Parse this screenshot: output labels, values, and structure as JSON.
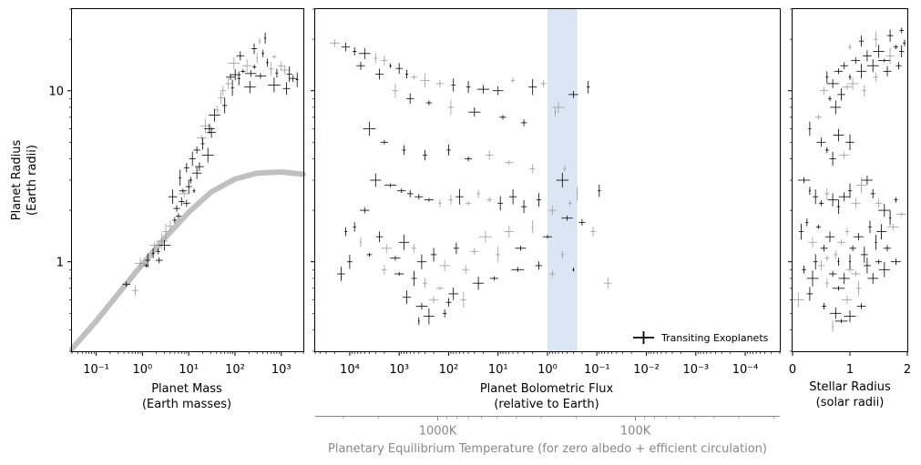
{
  "chart_data": [
    {
      "type": "scatter",
      "panel": "mass-radius",
      "xlabel": "Planet Mass",
      "xlabel_units": "(Earth masses)",
      "ylabel": "Planet Radius",
      "ylabel_units": "(Earth radii)",
      "x_scale": "log",
      "y_scale": "log",
      "xlim": [
        0.03,
        3000
      ],
      "ylim": [
        0.3,
        30
      ],
      "x_ticks": [
        {
          "value": 0.1,
          "label": "10⁻¹"
        },
        {
          "value": 1,
          "label": "10⁰"
        },
        {
          "value": 10,
          "label": "10¹"
        },
        {
          "value": 100,
          "label": "10²"
        },
        {
          "value": 1000,
          "label": "10³"
        }
      ],
      "y_ticks": [
        {
          "value": 1,
          "label": "1"
        },
        {
          "value": 10,
          "label": "10"
        }
      ],
      "reference_curve": {
        "color": "#c0c0c0",
        "x": [
          0.03,
          0.1,
          0.3,
          1,
          3,
          10,
          30,
          100,
          300,
          1000,
          3000
        ],
        "y": [
          0.31,
          0.45,
          0.65,
          0.97,
          1.37,
          1.95,
          2.55,
          3.05,
          3.3,
          3.35,
          3.25
        ]
      },
      "points": [
        [
          0.45,
          0.74
        ],
        [
          0.7,
          0.68
        ],
        [
          0.9,
          0.98
        ],
        [
          1.3,
          1.02
        ],
        [
          1.7,
          1.12
        ],
        [
          1.8,
          1.25
        ],
        [
          2.3,
          1.02
        ],
        [
          2.6,
          1.32
        ],
        [
          3.2,
          1.5
        ],
        [
          4.0,
          1.62
        ],
        [
          5.0,
          1.75
        ],
        [
          5.5,
          2.05
        ],
        [
          6.0,
          1.85
        ],
        [
          7.0,
          2.25
        ],
        [
          8.0,
          2.5
        ],
        [
          9.0,
          2.2
        ],
        [
          10,
          2.75
        ],
        [
          11,
          3.0
        ],
        [
          13,
          2.6
        ],
        [
          15,
          3.3
        ],
        [
          9,
          3.55
        ],
        [
          12,
          4.0
        ],
        [
          15,
          4.5
        ],
        [
          19,
          5.3
        ],
        [
          23,
          6.2
        ],
        [
          26,
          4.2
        ],
        [
          31,
          5.7
        ],
        [
          41,
          7.7
        ],
        [
          50,
          9.1
        ],
        [
          60,
          8.2
        ],
        [
          72,
          11.0
        ],
        [
          88,
          10.4
        ],
        [
          101,
          12.4
        ],
        [
          121,
          11.8
        ],
        [
          149,
          13.0
        ],
        [
          181,
          14.0
        ],
        [
          219,
          12.6
        ],
        [
          262,
          13.8
        ],
        [
          300,
          15.5
        ],
        [
          355,
          12.2
        ],
        [
          402,
          16.5
        ],
        [
          498,
          14.6
        ],
        [
          603,
          13.4
        ],
        [
          704,
          15.8
        ],
        [
          801,
          12.7
        ],
        [
          998,
          14.0
        ],
        [
          1197,
          13.2
        ],
        [
          1500,
          12.5
        ],
        [
          1800,
          11.8
        ],
        [
          2200,
          11.6
        ],
        [
          340,
          19.5
        ],
        [
          450,
          20.3
        ],
        [
          260,
          17.6
        ],
        [
          130,
          16.0
        ],
        [
          95,
          14.5
        ],
        [
          210,
          10.5
        ],
        [
          700,
          10.8
        ],
        [
          1300,
          10.3
        ],
        [
          3,
          1.25
        ],
        [
          4.5,
          2.4
        ],
        [
          6.5,
          3.1
        ],
        [
          17,
          3.6
        ],
        [
          28,
          6.0
        ],
        [
          36,
          7.2
        ],
        [
          55,
          10.0
        ],
        [
          80,
          12.0
        ],
        [
          2.2,
          1.15
        ],
        [
          1.2,
          0.95
        ],
        [
          7.5,
          2.6
        ],
        [
          20,
          4.9
        ]
      ]
    },
    {
      "type": "scatter",
      "panel": "flux-radius",
      "xlabel": "Planet Bolometric Flux",
      "xlabel_units": "(relative to Earth)",
      "x_scale": "log",
      "x_reversed": true,
      "y_scale": "log",
      "xlim": [
        50000,
        2e-05
      ],
      "ylim": [
        0.3,
        30
      ],
      "x_ticks": [
        {
          "value": 10000,
          "label": "10⁴"
        },
        {
          "value": 1000,
          "label": "10³"
        },
        {
          "value": 100,
          "label": "10²"
        },
        {
          "value": 10,
          "label": "10¹"
        },
        {
          "value": 1,
          "label": "10⁰"
        },
        {
          "value": 0.1,
          "label": "10⁻¹"
        },
        {
          "value": 0.01,
          "label": "10⁻²"
        },
        {
          "value": 0.001,
          "label": "10⁻³"
        },
        {
          "value": 0.0001,
          "label": "10⁻⁴"
        }
      ],
      "habitable_zone": {
        "from": 1.0,
        "to": 0.25,
        "color": "#dbe6f5"
      },
      "secondary_axis": {
        "label": "Planetary Equilibrium Temperature (for zero albedo + efficient circulation)",
        "ticks": [
          {
            "value_K": 1000,
            "label": "1000K"
          },
          {
            "value_K": 100,
            "label": "100K"
          }
        ],
        "color": "#888888"
      },
      "legend": {
        "entries": [
          "Transiting Exoplanets"
        ],
        "placement": "lower-right"
      },
      "points": [
        [
          20000,
          19
        ],
        [
          12000,
          18
        ],
        [
          8000,
          17
        ],
        [
          5000,
          16.5
        ],
        [
          3000,
          15.5
        ],
        [
          2000,
          15
        ],
        [
          1500,
          14
        ],
        [
          1000,
          13.5
        ],
        [
          700,
          12.5
        ],
        [
          500,
          12
        ],
        [
          300,
          11.5
        ],
        [
          150,
          11
        ],
        [
          80,
          10.8
        ],
        [
          40,
          10.5
        ],
        [
          20,
          10.2
        ],
        [
          10,
          10
        ],
        [
          5,
          11.5
        ],
        [
          2,
          10.5
        ],
        [
          1.2,
          11
        ],
        [
          0.6,
          8
        ],
        [
          0.3,
          9.5
        ],
        [
          0.15,
          10.5
        ],
        [
          6000,
          14
        ],
        [
          2500,
          12.5
        ],
        [
          1200,
          10
        ],
        [
          600,
          9
        ],
        [
          250,
          8.5
        ],
        [
          90,
          8
        ],
        [
          30,
          7.5
        ],
        [
          8,
          7
        ],
        [
          3,
          6.5
        ],
        [
          0.7,
          7.5
        ],
        [
          4000,
          6
        ],
        [
          2000,
          5
        ],
        [
          800,
          4.5
        ],
        [
          300,
          4.2
        ],
        [
          100,
          4.5
        ],
        [
          40,
          4
        ],
        [
          15,
          4.2
        ],
        [
          6,
          3.8
        ],
        [
          2,
          3.5
        ],
        [
          0.5,
          3
        ],
        [
          0.25,
          2.5
        ],
        [
          3000,
          3
        ],
        [
          1500,
          2.8
        ],
        [
          900,
          2.6
        ],
        [
          600,
          2.5
        ],
        [
          400,
          2.4
        ],
        [
          250,
          2.3
        ],
        [
          150,
          2.2
        ],
        [
          90,
          2.3
        ],
        [
          60,
          2.4
        ],
        [
          40,
          2.2
        ],
        [
          25,
          2.5
        ],
        [
          15,
          2.3
        ],
        [
          9,
          2.2
        ],
        [
          5,
          2.4
        ],
        [
          3,
          2.1
        ],
        [
          1.5,
          2.3
        ],
        [
          0.8,
          2
        ],
        [
          0.4,
          1.8
        ],
        [
          0.2,
          1.7
        ],
        [
          5000,
          2
        ],
        [
          8000,
          1.6
        ],
        [
          12000,
          1.5
        ],
        [
          6000,
          1.3
        ],
        [
          4000,
          1.1
        ],
        [
          2500,
          1.4
        ],
        [
          1800,
          1.2
        ],
        [
          1200,
          1.05
        ],
        [
          800,
          1.3
        ],
        [
          500,
          1.2
        ],
        [
          350,
          1
        ],
        [
          200,
          1.1
        ],
        [
          120,
          0.95
        ],
        [
          70,
          1.2
        ],
        [
          45,
          0.9
        ],
        [
          30,
          1.15
        ],
        [
          18,
          1.4
        ],
        [
          10,
          1.1
        ],
        [
          6,
          1.5
        ],
        [
          3.5,
          1.2
        ],
        [
          2,
          1.6
        ],
        [
          1,
          1.4
        ],
        [
          0.5,
          1.1
        ],
        [
          0.3,
          0.9
        ],
        [
          0.06,
          0.75
        ],
        [
          300,
          0.75
        ],
        [
          150,
          0.7
        ],
        [
          80,
          0.65
        ],
        [
          500,
          0.8
        ],
        [
          1000,
          0.85
        ],
        [
          2000,
          0.9
        ],
        [
          700,
          0.62
        ],
        [
          350,
          0.55
        ],
        [
          200,
          0.6
        ],
        [
          100,
          0.58
        ],
        [
          50,
          0.6
        ],
        [
          400,
          0.45
        ],
        [
          250,
          0.48
        ],
        [
          120,
          0.5
        ],
        [
          15000,
          0.85
        ],
        [
          10000,
          1.0
        ],
        [
          25,
          0.75
        ],
        [
          12,
          0.8
        ],
        [
          4,
          0.9
        ],
        [
          1.5,
          0.95
        ],
        [
          0.8,
          0.85
        ],
        [
          0.35,
          2.2
        ],
        [
          0.12,
          1.5
        ],
        [
          0.09,
          2.6
        ],
        [
          0.45,
          3.5
        ]
      ]
    },
    {
      "type": "scatter",
      "panel": "stellar-radius",
      "xlabel": "Stellar Radius",
      "xlabel_units": "(solar radii)",
      "x_scale": "linear",
      "y_scale": "log",
      "xlim": [
        0,
        2
      ],
      "ylim": [
        0.3,
        30
      ],
      "x_ticks": [
        {
          "value": 0,
          "label": "0"
        },
        {
          "value": 1,
          "label": "1"
        },
        {
          "value": 2,
          "label": "2"
        }
      ],
      "points": [
        [
          0.55,
          10
        ],
        [
          0.6,
          12
        ],
        [
          0.7,
          11
        ],
        [
          0.8,
          13
        ],
        [
          0.9,
          14
        ],
        [
          1.0,
          12
        ],
        [
          1.1,
          15
        ],
        [
          1.2,
          13
        ],
        [
          1.3,
          16
        ],
        [
          1.4,
          14
        ],
        [
          1.5,
          17
        ],
        [
          1.6,
          15
        ],
        [
          1.7,
          16
        ],
        [
          1.8,
          18
        ],
        [
          1.9,
          17
        ],
        [
          1.95,
          19
        ],
        [
          0.65,
          9
        ],
        [
          0.75,
          8
        ],
        [
          0.85,
          9.5
        ],
        [
          0.95,
          10.5
        ],
        [
          1.05,
          11
        ],
        [
          1.25,
          10
        ],
        [
          1.45,
          12
        ],
        [
          1.65,
          13
        ],
        [
          1.85,
          14
        ],
        [
          1.0,
          18
        ],
        [
          1.2,
          19.5
        ],
        [
          1.45,
          20
        ],
        [
          1.7,
          21
        ],
        [
          1.9,
          22.5
        ],
        [
          0.3,
          6
        ],
        [
          0.45,
          7
        ],
        [
          0.5,
          5
        ],
        [
          0.6,
          4.5
        ],
        [
          0.7,
          4
        ],
        [
          0.8,
          5.5
        ],
        [
          0.9,
          4.2
        ],
        [
          1.0,
          5
        ],
        [
          0.2,
          3
        ],
        [
          0.3,
          2.6
        ],
        [
          0.4,
          2.4
        ],
        [
          0.5,
          2.2
        ],
        [
          0.6,
          2.5
        ],
        [
          0.7,
          2.3
        ],
        [
          0.8,
          2.1
        ],
        [
          0.9,
          2.4
        ],
        [
          1.0,
          2.6
        ],
        [
          1.1,
          2.2
        ],
        [
          1.2,
          2.8
        ],
        [
          1.3,
          3
        ],
        [
          1.4,
          2.5
        ],
        [
          1.5,
          2.2
        ],
        [
          1.6,
          2
        ],
        [
          1.7,
          1.8
        ],
        [
          1.8,
          2.3
        ],
        [
          1.9,
          1.9
        ],
        [
          0.15,
          1.5
        ],
        [
          0.25,
          1.7
        ],
        [
          0.35,
          1.3
        ],
        [
          0.45,
          1.6
        ],
        [
          0.55,
          1.2
        ],
        [
          0.65,
          1.4
        ],
        [
          0.75,
          1.1
        ],
        [
          0.85,
          1.3
        ],
        [
          0.95,
          1.5
        ],
        [
          1.05,
          1.2
        ],
        [
          1.15,
          1.4
        ],
        [
          1.25,
          1.1
        ],
        [
          1.35,
          1.6
        ],
        [
          1.45,
          1.3
        ],
        [
          1.55,
          1.5
        ],
        [
          1.65,
          1.2
        ],
        [
          1.75,
          1.6
        ],
        [
          0.2,
          0.9
        ],
        [
          0.35,
          0.8
        ],
        [
          0.5,
          0.95
        ],
        [
          0.6,
          0.75
        ],
        [
          0.7,
          0.85
        ],
        [
          0.8,
          0.7
        ],
        [
          0.9,
          0.8
        ],
        [
          1.0,
          0.9
        ],
        [
          1.1,
          0.85
        ],
        [
          1.3,
          0.95
        ],
        [
          1.5,
          1.0
        ],
        [
          0.1,
          0.6
        ],
        [
          0.3,
          0.65
        ],
        [
          0.55,
          0.55
        ],
        [
          0.75,
          0.5
        ],
        [
          0.95,
          0.6
        ],
        [
          1.15,
          0.7
        ],
        [
          1.4,
          0.8
        ],
        [
          1.6,
          0.9
        ],
        [
          1.8,
          1.0
        ],
        [
          0.85,
          0.45
        ],
        [
          1.0,
          0.48
        ],
        [
          0.7,
          0.42
        ],
        [
          1.2,
          0.55
        ],
        [
          0.4,
          1.0
        ],
        [
          0.6,
          1.05
        ],
        [
          0.8,
          1.0
        ],
        [
          1.0,
          1.0
        ]
      ]
    }
  ]
}
